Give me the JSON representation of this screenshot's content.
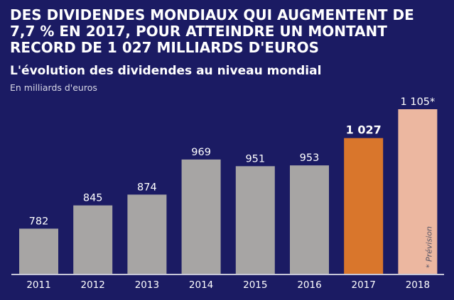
{
  "colors": {
    "background": "#1b1b63",
    "bar_default": "#a7a5a4",
    "bar_2017": "#d9762c",
    "bar_2018_forecast": "#ecb7a0",
    "axis_line": "#ffffff"
  },
  "footnote": "* Prévision",
  "chart_data": {
    "type": "bar",
    "title": "DES DIVIDENDES MONDIAUX QUI AUGMENTENT DE 7,7 % EN 2017, POUR ATTEINDRE UN MONTANT RECORD DE 1 027 MILLIARDS D'EUROS",
    "subtitle": "L'évolution des dividendes au niveau mondial",
    "ylabel": "En milliards d'euros",
    "xlabel": "",
    "categories": [
      "2011",
      "2012",
      "2013",
      "2014",
      "2015",
      "2016",
      "2017",
      "2018"
    ],
    "values": [
      782,
      845,
      874,
      969,
      951,
      953,
      1027,
      1105
    ],
    "value_labels": [
      "782",
      "845",
      "874",
      "969",
      "951",
      "953",
      "1 027",
      "1 105*"
    ],
    "highlight": {
      "2017": "bar_2017",
      "2018": "bar_2018_forecast"
    },
    "ylim": [
      660,
      1105
    ],
    "grid": false,
    "legend": "none"
  }
}
